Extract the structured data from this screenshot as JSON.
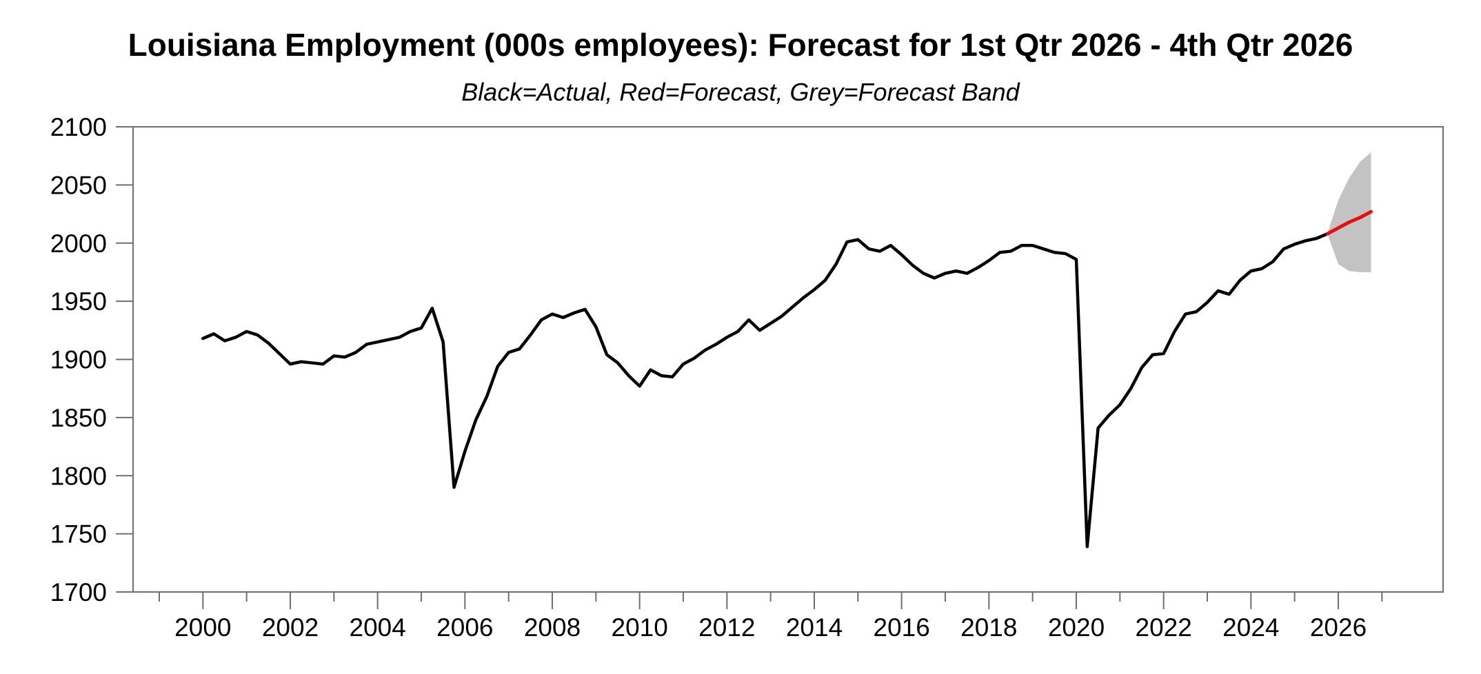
{
  "chart_data": {
    "type": "line",
    "title": "Louisiana Employment (000s employees): Forecast for 1st Qtr 2026 - 4th Qtr 2026",
    "subtitle": "Black=Actual, Red=Forecast, Grey=Forecast Band",
    "xlabel": "",
    "ylabel": "",
    "xlim": [
      1998.4,
      2028.4
    ],
    "ylim": [
      1700,
      2100
    ],
    "grid": false,
    "legend_position": "none (legend encoded in subtitle)",
    "y_ticks": [
      1700,
      1750,
      1800,
      1850,
      1900,
      1950,
      2000,
      2050,
      2100
    ],
    "x_major_ticks": [
      2000,
      2002,
      2004,
      2006,
      2008,
      2010,
      2012,
      2014,
      2016,
      2018,
      2020,
      2022,
      2024,
      2026
    ],
    "x_minor_ticks": [
      1999,
      2001,
      2003,
      2005,
      2007,
      2009,
      2011,
      2013,
      2015,
      2017,
      2019,
      2021,
      2023,
      2025,
      2027
    ],
    "axis_color": "#6e6e6e",
    "text_color": "#000000",
    "series": {
      "actual": {
        "name": "Actual",
        "color": "#000000",
        "x_start": 2000.0,
        "dt": 0.25,
        "values": [
          1918,
          1922,
          1916,
          1919,
          1924,
          1921,
          1914,
          1905,
          1896,
          1898,
          1897,
          1896,
          1903,
          1902,
          1906,
          1913,
          1915,
          1917,
          1919,
          1924,
          1927,
          1944,
          1915,
          1790,
          1821,
          1848,
          1868,
          1894,
          1906,
          1909,
          1921,
          1934,
          1939,
          1936,
          1940,
          1943,
          1928,
          1904,
          1897,
          1886,
          1877,
          1891,
          1886,
          1885,
          1896,
          1901,
          1908,
          1913,
          1919,
          1924,
          1934,
          1925,
          1931,
          1937,
          1945,
          1953,
          1960,
          1968,
          1982,
          2001,
          2003,
          1995,
          1993,
          1998,
          1990,
          1981,
          1974,
          1970,
          1974,
          1976,
          1974,
          1979,
          1985,
          1992,
          1993,
          1998,
          1998,
          1995,
          1992,
          1991,
          1986,
          1739,
          1841,
          1852,
          1861,
          1875,
          1893,
          1904,
          1905,
          1924,
          1939,
          1941,
          1949,
          1959,
          1956,
          1968,
          1976,
          1978,
          1984,
          1995,
          1999,
          2002,
          2004,
          2008
        ]
      },
      "forecast": {
        "name": "Forecast",
        "color": "#e60f0f",
        "x_start": 2026.0,
        "dt": 0.25,
        "values": [
          2013,
          2018,
          2022,
          2027
        ]
      },
      "forecast_band": {
        "name": "Forecast Band",
        "color": "#c3c3c3",
        "x": [
          2025.75,
          2026.0,
          2026.25,
          2026.5,
          2026.75
        ],
        "upper": [
          2008,
          2037,
          2056,
          2070,
          2078
        ],
        "lower": [
          2008,
          1982,
          1976,
          1975,
          1975
        ]
      }
    }
  }
}
